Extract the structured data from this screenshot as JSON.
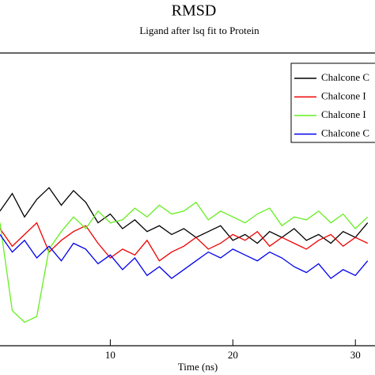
{
  "chart_data": {
    "type": "line",
    "title": "RMSD",
    "subtitle": "Ligand after lsq fit to Protein",
    "x_label": "Time (ns)",
    "x": [
      1,
      2,
      3,
      4,
      5,
      6,
      7,
      8,
      9,
      10,
      11,
      12,
      13,
      14,
      15,
      16,
      17,
      18,
      19,
      20,
      21,
      22,
      23,
      24,
      25,
      26,
      27,
      28,
      29,
      30,
      31
    ],
    "series": [
      {
        "name": "Chalcone C",
        "color": "#000000",
        "values": [
          4.6,
          5.2,
          4.4,
          5.0,
          5.4,
          4.8,
          5.3,
          4.9,
          4.2,
          4.5,
          4.0,
          4.3,
          3.9,
          4.1,
          3.8,
          4.0,
          3.7,
          3.9,
          4.1,
          3.6,
          3.8,
          3.5,
          3.9,
          3.7,
          4.0,
          3.6,
          3.8,
          3.5,
          3.9,
          3.7,
          4.2
        ]
      },
      {
        "name": "Chalcone I",
        "color": "#ee0000",
        "values": [
          4.0,
          3.4,
          3.8,
          4.2,
          3.2,
          3.6,
          3.9,
          4.1,
          3.5,
          3.0,
          3.3,
          3.1,
          3.6,
          2.9,
          3.2,
          3.4,
          3.7,
          3.3,
          3.5,
          3.8,
          3.6,
          3.9,
          3.4,
          3.7,
          3.5,
          3.3,
          3.6,
          3.8,
          3.4,
          3.7,
          3.5
        ]
      },
      {
        "name": "Chalcone I",
        "color": "#66ee22",
        "values": [
          4.2,
          1.2,
          0.8,
          1.0,
          3.3,
          3.9,
          4.4,
          4.0,
          4.6,
          4.2,
          4.3,
          4.7,
          4.4,
          4.8,
          4.5,
          4.6,
          4.9,
          4.3,
          4.6,
          4.4,
          4.2,
          4.5,
          4.7,
          4.1,
          4.4,
          4.3,
          4.6,
          4.2,
          4.5,
          4.0,
          4.4
        ]
      },
      {
        "name": "Chalcone C",
        "color": "#0000ee",
        "values": [
          3.8,
          3.2,
          3.6,
          3.0,
          3.4,
          2.9,
          3.5,
          3.3,
          2.8,
          3.1,
          2.6,
          3.0,
          2.4,
          2.7,
          2.3,
          2.6,
          2.9,
          3.2,
          3.0,
          3.3,
          3.1,
          2.9,
          3.2,
          3.0,
          2.7,
          2.5,
          2.8,
          2.3,
          2.6,
          2.4,
          2.9
        ]
      }
    ],
    "xlim": [
      1,
      31.6
    ],
    "xticks": [
      10,
      20,
      30
    ],
    "ylim": [
      0,
      10
    ],
    "legend": "upper right"
  }
}
